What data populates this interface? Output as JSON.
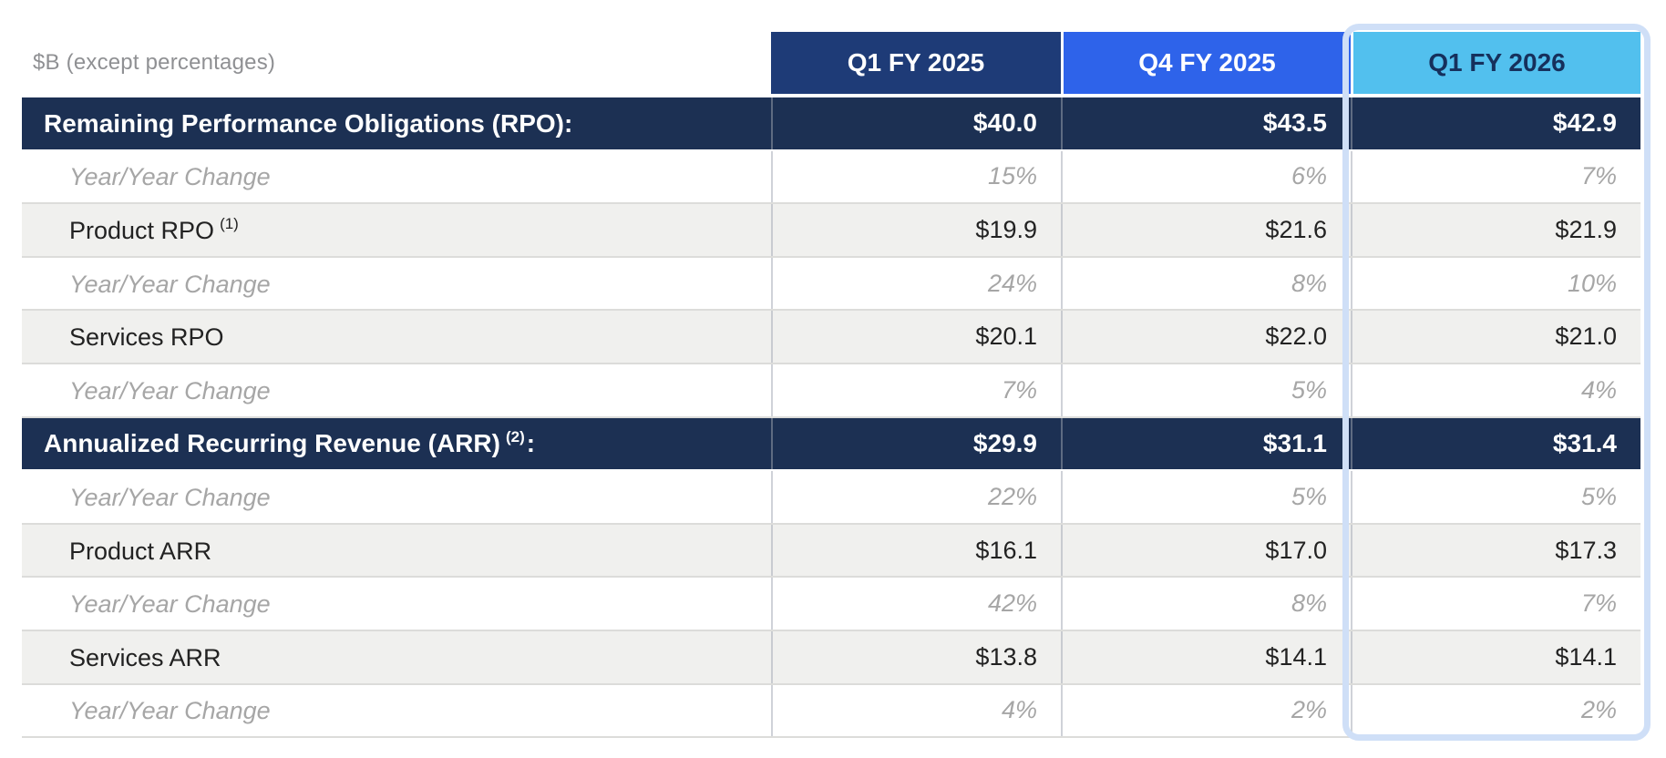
{
  "chart_data": {
    "type": "table",
    "unit_note": "$B (except percentages)",
    "columns": [
      "Q1 FY 2025",
      "Q4 FY 2025",
      "Q1 FY 2026"
    ],
    "highlighted_column": "Q1 FY 2026",
    "rows": [
      {
        "label": "Remaining Performance Obligations (RPO):",
        "sup": "",
        "suffix": "",
        "values": [
          "$40.0",
          "$43.5",
          "$42.9"
        ]
      },
      {
        "label": "Year/Year Change",
        "sup": "",
        "suffix": "",
        "values": [
          "15%",
          "6%",
          "7%"
        ]
      },
      {
        "label": "Product RPO",
        "sup": "(1)",
        "suffix": "",
        "values": [
          "$19.9",
          "$21.6",
          "$21.9"
        ]
      },
      {
        "label": "Year/Year Change",
        "sup": "",
        "suffix": "",
        "values": [
          "24%",
          "8%",
          "10%"
        ]
      },
      {
        "label": "Services RPO",
        "sup": "",
        "suffix": "",
        "values": [
          "$20.1",
          "$22.0",
          "$21.0"
        ]
      },
      {
        "label": "Year/Year Change",
        "sup": "",
        "suffix": "",
        "values": [
          "7%",
          "5%",
          "4%"
        ]
      },
      {
        "label": "Annualized Recurring Revenue (ARR)",
        "sup": "(2)",
        "suffix": ":",
        "values": [
          "$29.9",
          "$31.1",
          "$31.4"
        ]
      },
      {
        "label": "Year/Year Change",
        "sup": "",
        "suffix": "",
        "values": [
          "22%",
          "5%",
          "5%"
        ]
      },
      {
        "label": "Product ARR",
        "sup": "",
        "suffix": "",
        "values": [
          "$16.1",
          "$17.0",
          "$17.3"
        ]
      },
      {
        "label": "Year/Year Change",
        "sup": "",
        "suffix": "",
        "values": [
          "42%",
          "8%",
          "7%"
        ]
      },
      {
        "label": "Services ARR",
        "sup": "",
        "suffix": "",
        "values": [
          "$13.8",
          "$14.1",
          "$14.1"
        ]
      },
      {
        "label": "Year/Year Change",
        "sup": "",
        "suffix": "",
        "values": [
          "4%",
          "2%",
          "2%"
        ]
      }
    ],
    "colors": {
      "header_q1_fy2025_bg": "#1e3b77",
      "header_q4_fy2025_bg": "#2e63ea",
      "header_q1_fy2026_bg": "#52c0ee",
      "header_q1_fy2026_text": "#16305c",
      "section_row_bg": "#1c3053",
      "subrow_bg": "#f0f0ee",
      "yoy_text": "#a6a6a6",
      "highlight_outline": "#cfdff7"
    }
  }
}
